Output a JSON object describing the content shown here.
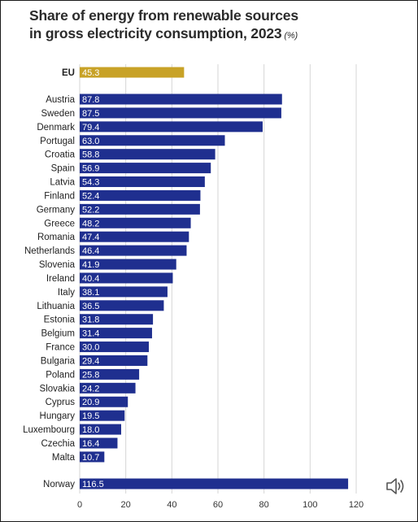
{
  "chart_data": {
    "type": "bar",
    "orientation": "horizontal",
    "title": "Share of energy from renewable sources",
    "title_line2": "in gross electricity consumption, 2023",
    "title_unit": "(%)",
    "xlim": [
      0,
      120
    ],
    "x_ticks": [
      0,
      20,
      40,
      60,
      80,
      100,
      120
    ],
    "grid": true,
    "colors": {
      "eu_bar": "#c8a227",
      "country_bar": "#1f2f8f",
      "grid": "#d6d6d6"
    },
    "groups": [
      {
        "name": "eu",
        "categories": [
          "EU"
        ],
        "values": [
          45.3
        ],
        "labels": [
          "45.3"
        ]
      },
      {
        "name": "countries",
        "categories": [
          "Austria",
          "Sweden",
          "Denmark",
          "Portugal",
          "Croatia",
          "Spain",
          "Latvia",
          "Finland",
          "Germany",
          "Greece",
          "Romania",
          "Netherlands",
          "Slovenia",
          "Ireland",
          "Italy",
          "Lithuania",
          "Estonia",
          "Belgium",
          "France",
          "Bulgaria",
          "Poland",
          "Slovakia",
          "Cyprus",
          "Hungary",
          "Luxembourg",
          "Czechia",
          "Malta"
        ],
        "values": [
          87.8,
          87.5,
          79.4,
          63.0,
          58.8,
          56.9,
          54.3,
          52.4,
          52.2,
          48.2,
          47.4,
          46.4,
          41.9,
          40.4,
          38.1,
          36.5,
          31.8,
          31.4,
          30.0,
          29.4,
          25.8,
          24.2,
          20.9,
          19.5,
          18.0,
          16.4,
          10.7
        ],
        "labels": [
          "87.8",
          "87.5",
          "79.4",
          "63.0",
          "58.8",
          "56.9",
          "54.3",
          "52.4",
          "52.2",
          "48.2",
          "47.4",
          "46.4",
          "41.9",
          "40.4",
          "38.1",
          "36.5",
          "31.8",
          "31.4",
          "30.0",
          "29.4",
          "25.8",
          "24.2",
          "20.9",
          "19.5",
          "18.0",
          "16.4",
          "10.7"
        ]
      },
      {
        "name": "non-eu",
        "categories": [
          "Norway"
        ],
        "values": [
          116.5
        ],
        "labels": [
          "116.5"
        ]
      }
    ]
  },
  "icons": {
    "audio": "speaker-icon"
  }
}
